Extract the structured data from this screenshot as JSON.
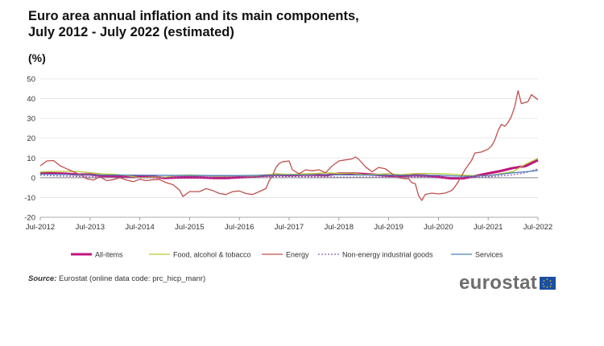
{
  "title_line1": "Euro area annual inflation and its main components,",
  "title_line2": "July 2012 - July 2022 (estimated)",
  "unit": "(%)",
  "source_label": "Source:",
  "source_text": " Eurostat (online data code: prc_hicp_manr)",
  "logo_text": "eurostat",
  "colors": {
    "all_items": "#c0147e",
    "food": "#b5c933",
    "energy": "#c0504d",
    "non_energy": "#8a5bb0",
    "services": "#4e7fb8",
    "grid": "#e3e3e3",
    "zero": "#888888"
  },
  "chart_data": {
    "type": "line",
    "title": "Euro area annual inflation and its main components, July 2012 - July 2022 (estimated)",
    "ylabel": "(%)",
    "ylim": [
      -20,
      50
    ],
    "yticks": [
      -20,
      -10,
      0,
      10,
      20,
      30,
      40,
      50
    ],
    "x_start": "Jul-2012",
    "x_end": "Jul-2022",
    "xticks": [
      "Jul-2012",
      "Jul-2013",
      "Jul-2014",
      "Jul-2015",
      "Jul-2016",
      "Jul-2017",
      "Jul-2018",
      "Jul-2019",
      "Jul-2020",
      "Jul-2021",
      "Jul-2022"
    ],
    "grid": true,
    "legend_position": "bottom",
    "series": [
      {
        "name": "All-items",
        "color_key": "all_items",
        "width": 3,
        "dash": "",
        "points": [
          [
            0,
            2.4
          ],
          [
            3,
            2.2
          ],
          [
            6,
            2.0
          ],
          [
            9,
            1.6
          ],
          [
            12,
            1.6
          ],
          [
            15,
            0.9
          ],
          [
            18,
            0.8
          ],
          [
            21,
            0.5
          ],
          [
            24,
            0.4
          ],
          [
            27,
            0.5
          ],
          [
            30,
            -0.2
          ],
          [
            33,
            0.1
          ],
          [
            36,
            0.2
          ],
          [
            39,
            0.1
          ],
          [
            42,
            -0.2
          ],
          [
            45,
            -0.2
          ],
          [
            48,
            0.2
          ],
          [
            51,
            0.5
          ],
          [
            54,
            1.1
          ],
          [
            57,
            1.5
          ],
          [
            60,
            1.3
          ],
          [
            63,
            1.5
          ],
          [
            66,
            1.4
          ],
          [
            69,
            1.3
          ],
          [
            72,
            2.1
          ],
          [
            75,
            2.2
          ],
          [
            78,
            1.9
          ],
          [
            81,
            1.5
          ],
          [
            84,
            1.0
          ],
          [
            87,
            0.8
          ],
          [
            90,
            1.3
          ],
          [
            93,
            1.1
          ],
          [
            96,
            0.4
          ],
          [
            99,
            -0.3
          ],
          [
            102,
            -0.3
          ],
          [
            105,
            0.9
          ],
          [
            108,
            2.2
          ],
          [
            111,
            3.4
          ],
          [
            114,
            4.9
          ],
          [
            117,
            5.9
          ],
          [
            120,
            8.9
          ]
        ]
      },
      {
        "name": "Food, alcohol & tobacco",
        "color_key": "food",
        "width": 1.3,
        "dash": "",
        "points": [
          [
            0,
            2.9
          ],
          [
            3,
            3.1
          ],
          [
            6,
            3.2
          ],
          [
            9,
            3.2
          ],
          [
            12,
            2.5
          ],
          [
            15,
            1.9
          ],
          [
            18,
            1.7
          ],
          [
            21,
            1.0
          ],
          [
            24,
            0.0
          ],
          [
            27,
            0.3
          ],
          [
            30,
            0.2
          ],
          [
            33,
            1.2
          ],
          [
            36,
            1.4
          ],
          [
            39,
            1.2
          ],
          [
            42,
            0.8
          ],
          [
            45,
            0.8
          ],
          [
            48,
            1.0
          ],
          [
            51,
            0.8
          ],
          [
            54,
            1.3
          ],
          [
            57,
            2.0
          ],
          [
            60,
            1.6
          ],
          [
            63,
            1.9
          ],
          [
            66,
            2.1
          ],
          [
            69,
            2.5
          ],
          [
            72,
            2.1
          ],
          [
            75,
            2.4
          ],
          [
            78,
            1.5
          ],
          [
            81,
            1.7
          ],
          [
            84,
            2.0
          ],
          [
            87,
            1.5
          ],
          [
            90,
            2.0
          ],
          [
            93,
            2.2
          ],
          [
            96,
            2.0
          ],
          [
            99,
            1.8
          ],
          [
            102,
            1.3
          ],
          [
            105,
            1.0
          ],
          [
            108,
            1.0
          ],
          [
            111,
            2.0
          ],
          [
            114,
            3.1
          ],
          [
            117,
            6.8
          ],
          [
            120,
            9.8
          ]
        ]
      },
      {
        "name": "Energy",
        "color_key": "energy",
        "width": 1.3,
        "dash": "",
        "points": [
          [
            0,
            6.0
          ],
          [
            2,
            8.5
          ],
          [
            4,
            8.7
          ],
          [
            6,
            6.0
          ],
          [
            8,
            4.5
          ],
          [
            10,
            3.0
          ],
          [
            12,
            1.6
          ],
          [
            14,
            -0.5
          ],
          [
            16,
            -1.2
          ],
          [
            18,
            0.5
          ],
          [
            20,
            -1.5
          ],
          [
            22,
            -1.0
          ],
          [
            24,
            0.0
          ],
          [
            26,
            -1.2
          ],
          [
            28,
            -2.0
          ],
          [
            30,
            -0.8
          ],
          [
            32,
            -1.5
          ],
          [
            34,
            -1.0
          ],
          [
            36,
            -1.0
          ],
          [
            38,
            -2.5
          ],
          [
            40,
            -3.5
          ],
          [
            42,
            -6.3
          ],
          [
            43,
            -9.5
          ],
          [
            45,
            -7.0
          ],
          [
            48,
            -7.0
          ],
          [
            50,
            -5.5
          ],
          [
            52,
            -6.5
          ],
          [
            54,
            -8.0
          ],
          [
            56,
            -8.5
          ],
          [
            58,
            -7.0
          ],
          [
            60,
            -6.7
          ],
          [
            62,
            -8.0
          ],
          [
            64,
            -8.5
          ],
          [
            66,
            -7.0
          ],
          [
            68,
            -5.5
          ],
          [
            69,
            -1.5
          ],
          [
            70,
            1.0
          ],
          [
            71,
            5.0
          ],
          [
            72,
            7.2
          ],
          [
            73,
            8.0
          ],
          [
            75,
            8.5
          ],
          [
            76,
            4.0
          ],
          [
            78,
            2.0
          ],
          [
            80,
            4.0
          ],
          [
            82,
            3.5
          ],
          [
            84,
            4.0
          ],
          [
            86,
            2.5
          ],
          [
            88,
            6.0
          ],
          [
            90,
            8.5
          ],
          [
            92,
            9.0
          ],
          [
            94,
            9.5
          ],
          [
            95,
            10.5
          ],
          [
            96,
            9.3
          ],
          [
            98,
            5.5
          ],
          [
            100,
            3.0
          ],
          [
            102,
            5.2
          ],
          [
            104,
            4.5
          ],
          [
            106,
            2.0
          ],
          [
            108,
            0.0
          ],
          [
            110,
            -0.5
          ],
          [
            111,
            -0.5
          ],
          [
            112,
            -2.5
          ],
          [
            113,
            -3.0
          ],
          [
            114,
            -9.0
          ],
          [
            115,
            -11.5
          ],
          [
            116,
            -8.5
          ],
          [
            118,
            -7.8
          ],
          [
            120,
            -8.2
          ],
          [
            122,
            -7.8
          ],
          [
            124,
            -6.5
          ],
          [
            125,
            -4.5
          ],
          [
            126,
            -2.0
          ],
          [
            128,
            4.0
          ],
          [
            130,
            8.8
          ],
          [
            131,
            12.5
          ],
          [
            133,
            13.0
          ],
          [
            135,
            14.5
          ],
          [
            136,
            16.0
          ],
          [
            137,
            19.0
          ],
          [
            138,
            24.0
          ],
          [
            139,
            27.0
          ],
          [
            140,
            26.0
          ],
          [
            141,
            28.0
          ],
          [
            142,
            31.0
          ],
          [
            143,
            36.0
          ],
          [
            144,
            44.0
          ],
          [
            145,
            37.5
          ],
          [
            147,
            38.5
          ],
          [
            148,
            42.0
          ],
          [
            150,
            39.5
          ]
        ]
      },
      {
        "name": "Non-energy industrial goods",
        "color_key": "non_energy",
        "width": 1.3,
        "dash": "2,2",
        "points": [
          [
            0,
            1.2
          ],
          [
            12,
            0.4
          ],
          [
            24,
            0.0
          ],
          [
            36,
            0.2
          ],
          [
            48,
            0.4
          ],
          [
            60,
            0.6
          ],
          [
            72,
            0.3
          ],
          [
            84,
            0.3
          ],
          [
            96,
            0.4
          ],
          [
            102,
            0.0
          ],
          [
            108,
            0.4
          ],
          [
            114,
            1.5
          ],
          [
            117,
            2.5
          ],
          [
            120,
            4.5
          ]
        ]
      },
      {
        "name": "Services",
        "color_key": "services",
        "width": 1.3,
        "dash": "",
        "points": [
          [
            0,
            1.8
          ],
          [
            12,
            1.4
          ],
          [
            24,
            1.3
          ],
          [
            36,
            1.1
          ],
          [
            48,
            1.1
          ],
          [
            60,
            1.4
          ],
          [
            72,
            1.4
          ],
          [
            84,
            1.3
          ],
          [
            96,
            1.2
          ],
          [
            102,
            0.7
          ],
          [
            108,
            1.0
          ],
          [
            114,
            2.5
          ],
          [
            117,
            3.0
          ],
          [
            120,
            3.7
          ]
        ]
      }
    ],
    "legend": [
      {
        "label": "All-items",
        "color_key": "all_items",
        "width": 3,
        "dash": ""
      },
      {
        "label": "Food, alcohol & tobacco",
        "color_key": "food",
        "width": 1.3,
        "dash": ""
      },
      {
        "label": "Energy",
        "color_key": "energy",
        "width": 1.3,
        "dash": ""
      },
      {
        "label": "Non-energy industrial goods",
        "color_key": "non_energy",
        "width": 1.3,
        "dash": "2,2"
      },
      {
        "label": "Services",
        "color_key": "services",
        "width": 1.3,
        "dash": ""
      }
    ]
  }
}
